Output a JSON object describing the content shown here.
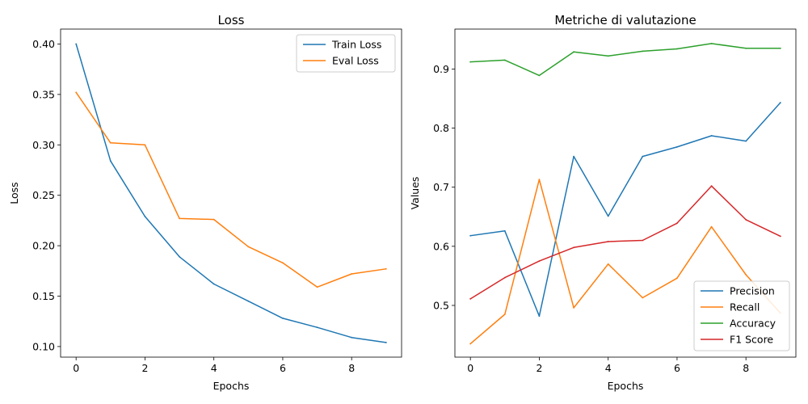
{
  "chart_data": [
    {
      "type": "line",
      "title": "Loss",
      "xlabel": "Epochs",
      "ylabel": "Loss",
      "xlim": [
        -0.45,
        9.45
      ],
      "ylim": [
        0.0895,
        0.4148
      ],
      "xticks": [
        0,
        2,
        4,
        6,
        8
      ],
      "xtick_labels": [
        "0",
        "2",
        "4",
        "6",
        "8"
      ],
      "yticks": [
        0.1,
        0.15,
        0.2,
        0.25,
        0.3,
        0.35,
        0.4
      ],
      "ytick_labels": [
        "0.10",
        "0.15",
        "0.20",
        "0.25",
        "0.30",
        "0.35",
        "0.40"
      ],
      "grid": false,
      "legend": "top-right",
      "x": [
        0,
        1,
        2,
        3,
        4,
        5,
        6,
        7,
        8,
        9
      ],
      "series": [
        {
          "name": "Train Loss",
          "color": "#1f77b4",
          "values": [
            0.4,
            0.284,
            0.229,
            0.189,
            0.162,
            0.145,
            0.128,
            0.119,
            0.109,
            0.104
          ]
        },
        {
          "name": "Eval Loss",
          "color": "#ff7f0e",
          "values": [
            0.352,
            0.302,
            0.3,
            0.227,
            0.226,
            0.199,
            0.183,
            0.159,
            0.172,
            0.177
          ]
        }
      ]
    },
    {
      "type": "line",
      "title": "Metriche di valutazione",
      "xlabel": "Epochs",
      "ylabel": "Values",
      "xlim": [
        -0.45,
        9.45
      ],
      "ylim": [
        0.4125,
        0.9675
      ],
      "xticks": [
        0,
        2,
        4,
        6,
        8
      ],
      "xtick_labels": [
        "0",
        "2",
        "4",
        "6",
        "8"
      ],
      "yticks": [
        0.5,
        0.6,
        0.7,
        0.8,
        0.9
      ],
      "ytick_labels": [
        "0.5",
        "0.6",
        "0.7",
        "0.8",
        "0.9"
      ],
      "grid": false,
      "legend": "bottom-right",
      "x": [
        0,
        1,
        2,
        3,
        4,
        5,
        6,
        7,
        8,
        9
      ],
      "series": [
        {
          "name": "Precision",
          "color": "#1f77b4",
          "values": [
            0.618,
            0.626,
            0.482,
            0.752,
            0.651,
            0.752,
            0.768,
            0.787,
            0.778,
            0.843
          ]
        },
        {
          "name": "Recall",
          "color": "#ff7f0e",
          "values": [
            0.435,
            0.485,
            0.713,
            0.496,
            0.57,
            0.513,
            0.546,
            0.633,
            0.552,
            0.487
          ]
        },
        {
          "name": "Accuracy",
          "color": "#2ca02c",
          "values": [
            0.912,
            0.915,
            0.889,
            0.929,
            0.922,
            0.93,
            0.934,
            0.943,
            0.935,
            0.935
          ]
        },
        {
          "name": "F1 Score",
          "color": "#d62728",
          "values": [
            0.511,
            0.547,
            0.575,
            0.598,
            0.608,
            0.61,
            0.639,
            0.702,
            0.645,
            0.617
          ]
        }
      ]
    }
  ]
}
